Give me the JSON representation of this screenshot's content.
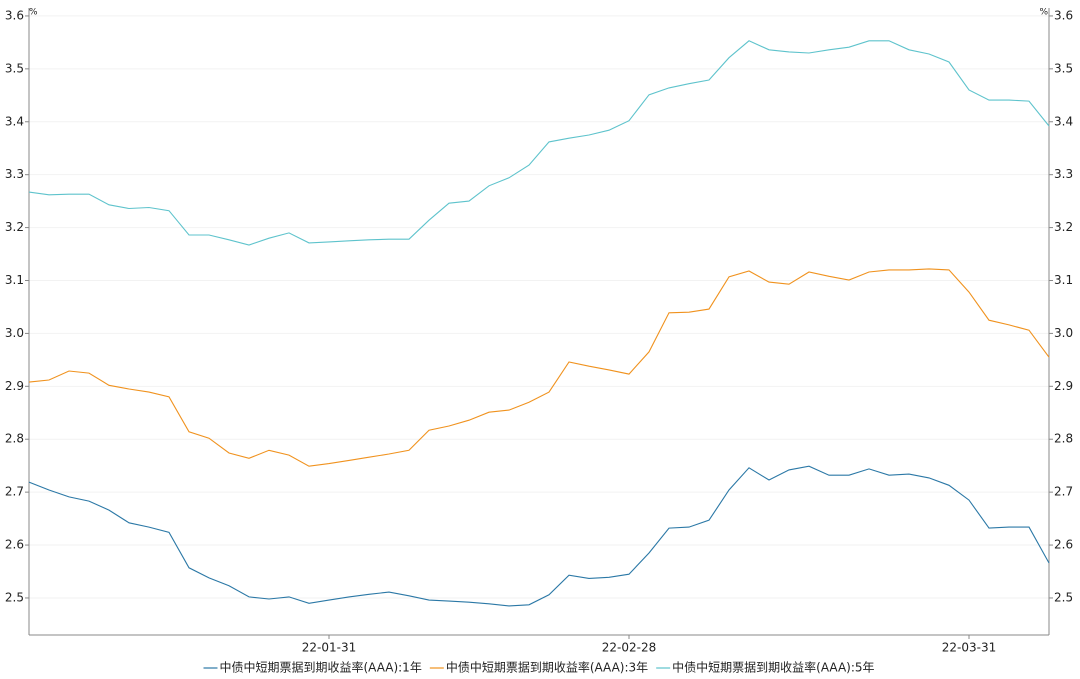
{
  "chart_data": {
    "type": "line",
    "y_unit": "%",
    "categories": [
      null,
      null,
      null,
      null,
      null,
      null,
      null,
      null,
      null,
      null,
      null,
      null,
      null,
      null,
      null,
      "22-01-31",
      null,
      null,
      null,
      null,
      null,
      null,
      null,
      null,
      null,
      null,
      null,
      null,
      null,
      null,
      "22-02-28",
      null,
      null,
      null,
      null,
      null,
      null,
      null,
      null,
      null,
      null,
      null,
      null,
      null,
      null,
      null,
      null,
      "22-03-31",
      null,
      null,
      null,
      null
    ],
    "series": [
      {
        "name": "中债中短期票据到期收益率(AAA):1年",
        "color": "#2b78a6",
        "values": [
          2.719,
          2.704,
          2.691,
          2.683,
          2.666,
          2.642,
          2.634,
          2.624,
          2.557,
          2.538,
          2.523,
          2.502,
          2.498,
          2.502,
          2.49,
          2.496,
          2.502,
          2.507,
          2.511,
          2.504,
          2.496,
          2.494,
          2.492,
          2.489,
          2.485,
          2.487,
          2.506,
          2.543,
          2.537,
          2.539,
          2.545,
          2.585,
          2.632,
          2.634,
          2.647,
          2.704,
          2.746,
          2.723,
          2.742,
          2.749,
          2.732,
          2.732,
          2.744,
          2.732,
          2.734,
          2.727,
          2.713,
          2.685,
          2.632,
          2.634,
          2.634,
          2.566
        ]
      },
      {
        "name": "中债中短期票据到期收益率(AAA):3年",
        "color": "#f0921e",
        "values": [
          2.908,
          2.912,
          2.929,
          2.925,
          2.902,
          2.895,
          2.889,
          2.88,
          2.814,
          2.802,
          2.774,
          2.764,
          2.779,
          2.77,
          2.749,
          2.754,
          2.76,
          2.766,
          2.772,
          2.779,
          2.817,
          2.825,
          2.836,
          2.851,
          2.855,
          2.87,
          2.889,
          2.946,
          2.938,
          2.931,
          2.923,
          2.965,
          3.039,
          3.04,
          3.046,
          3.107,
          3.118,
          3.097,
          3.093,
          3.116,
          3.108,
          3.101,
          3.116,
          3.12,
          3.12,
          3.122,
          3.12,
          3.078,
          3.025,
          3.016,
          3.006,
          2.955
        ]
      },
      {
        "name": "中债中短期票据到期收益率(AAA):5年",
        "color": "#5ec3cc",
        "values": [
          3.267,
          3.262,
          3.263,
          3.263,
          3.243,
          3.236,
          3.238,
          3.232,
          3.186,
          3.186,
          3.177,
          3.167,
          3.18,
          3.19,
          3.171,
          3.173,
          3.175,
          3.177,
          3.178,
          3.178,
          3.214,
          3.246,
          3.25,
          3.279,
          3.294,
          3.318,
          3.362,
          3.369,
          3.375,
          3.384,
          3.402,
          3.451,
          3.464,
          3.472,
          3.479,
          3.521,
          3.553,
          3.536,
          3.532,
          3.53,
          3.536,
          3.541,
          3.553,
          3.553,
          3.536,
          3.528,
          3.513,
          3.46,
          3.441,
          3.441,
          3.439,
          3.392
        ]
      }
    ],
    "ylim": [
      2.43,
      3.615
    ],
    "yticks": [
      2.5,
      2.6,
      2.7,
      2.8,
      2.9,
      {
        "value": 3,
        "label": "3.0"
      },
      3.1,
      3.2,
      3.3,
      3.4,
      3.5,
      3.6
    ],
    "grid": true
  }
}
